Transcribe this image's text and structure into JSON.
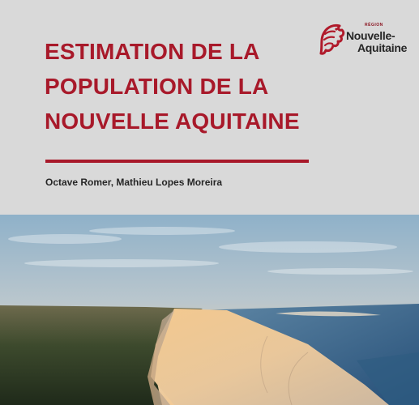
{
  "document": {
    "title_lines": [
      "ESTIMATION DE LA",
      "POPULATION DE LA",
      "NOUVELLE AQUITAINE"
    ],
    "authors": "Octave Romer, Mathieu Lopes Moreira"
  },
  "logo": {
    "region_label": "RÉGION",
    "name_line1": "Nouvelle-",
    "name_line2": "Aquitaine",
    "icon": "lion-head-logo"
  },
  "cover_photo": {
    "subject": "aerial-dune-landscape-icon"
  },
  "colors": {
    "accent": "#a8192a",
    "background": "#d9d9d9",
    "text": "#262626"
  }
}
